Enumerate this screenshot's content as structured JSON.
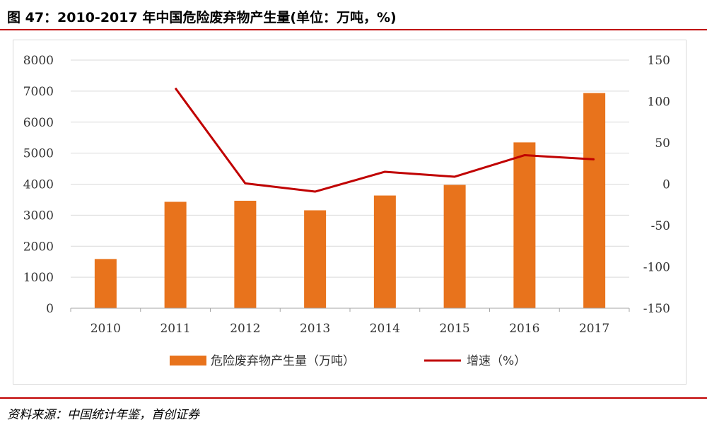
{
  "header": {
    "title": "图 47：2010-2017 年中国危险废弃物产生量(单位：万吨，%)"
  },
  "footer": {
    "source": "资料来源：中国统计年鉴，首创证券"
  },
  "colors": {
    "bar": "#E8731C",
    "line": "#C00000",
    "rule": "#C00000"
  },
  "chart_data": {
    "type": "bar",
    "categories": [
      "2010",
      "2011",
      "2012",
      "2013",
      "2014",
      "2015",
      "2016",
      "2017"
    ],
    "series": [
      {
        "name": "危险废弃物产生量（万吨）",
        "type": "bar",
        "axis": "left",
        "values": [
          1587,
          3431,
          3465,
          3157,
          3634,
          3976,
          5347,
          6937
        ]
      },
      {
        "name": "增速（%）",
        "type": "line",
        "axis": "right",
        "values": [
          null,
          116,
          1,
          -9,
          15,
          9,
          35,
          30
        ]
      }
    ],
    "ylim_left": [
      0,
      8000
    ],
    "yticks_left": [
      "0",
      "1000",
      "2000",
      "3000",
      "4000",
      "5000",
      "6000",
      "7000",
      "8000"
    ],
    "ylim_right": [
      -150,
      150
    ],
    "yticks_right": [
      "-150",
      "-100",
      "-50",
      "0",
      "50",
      "100",
      "150"
    ],
    "grid": true,
    "legend_position": "bottom"
  }
}
